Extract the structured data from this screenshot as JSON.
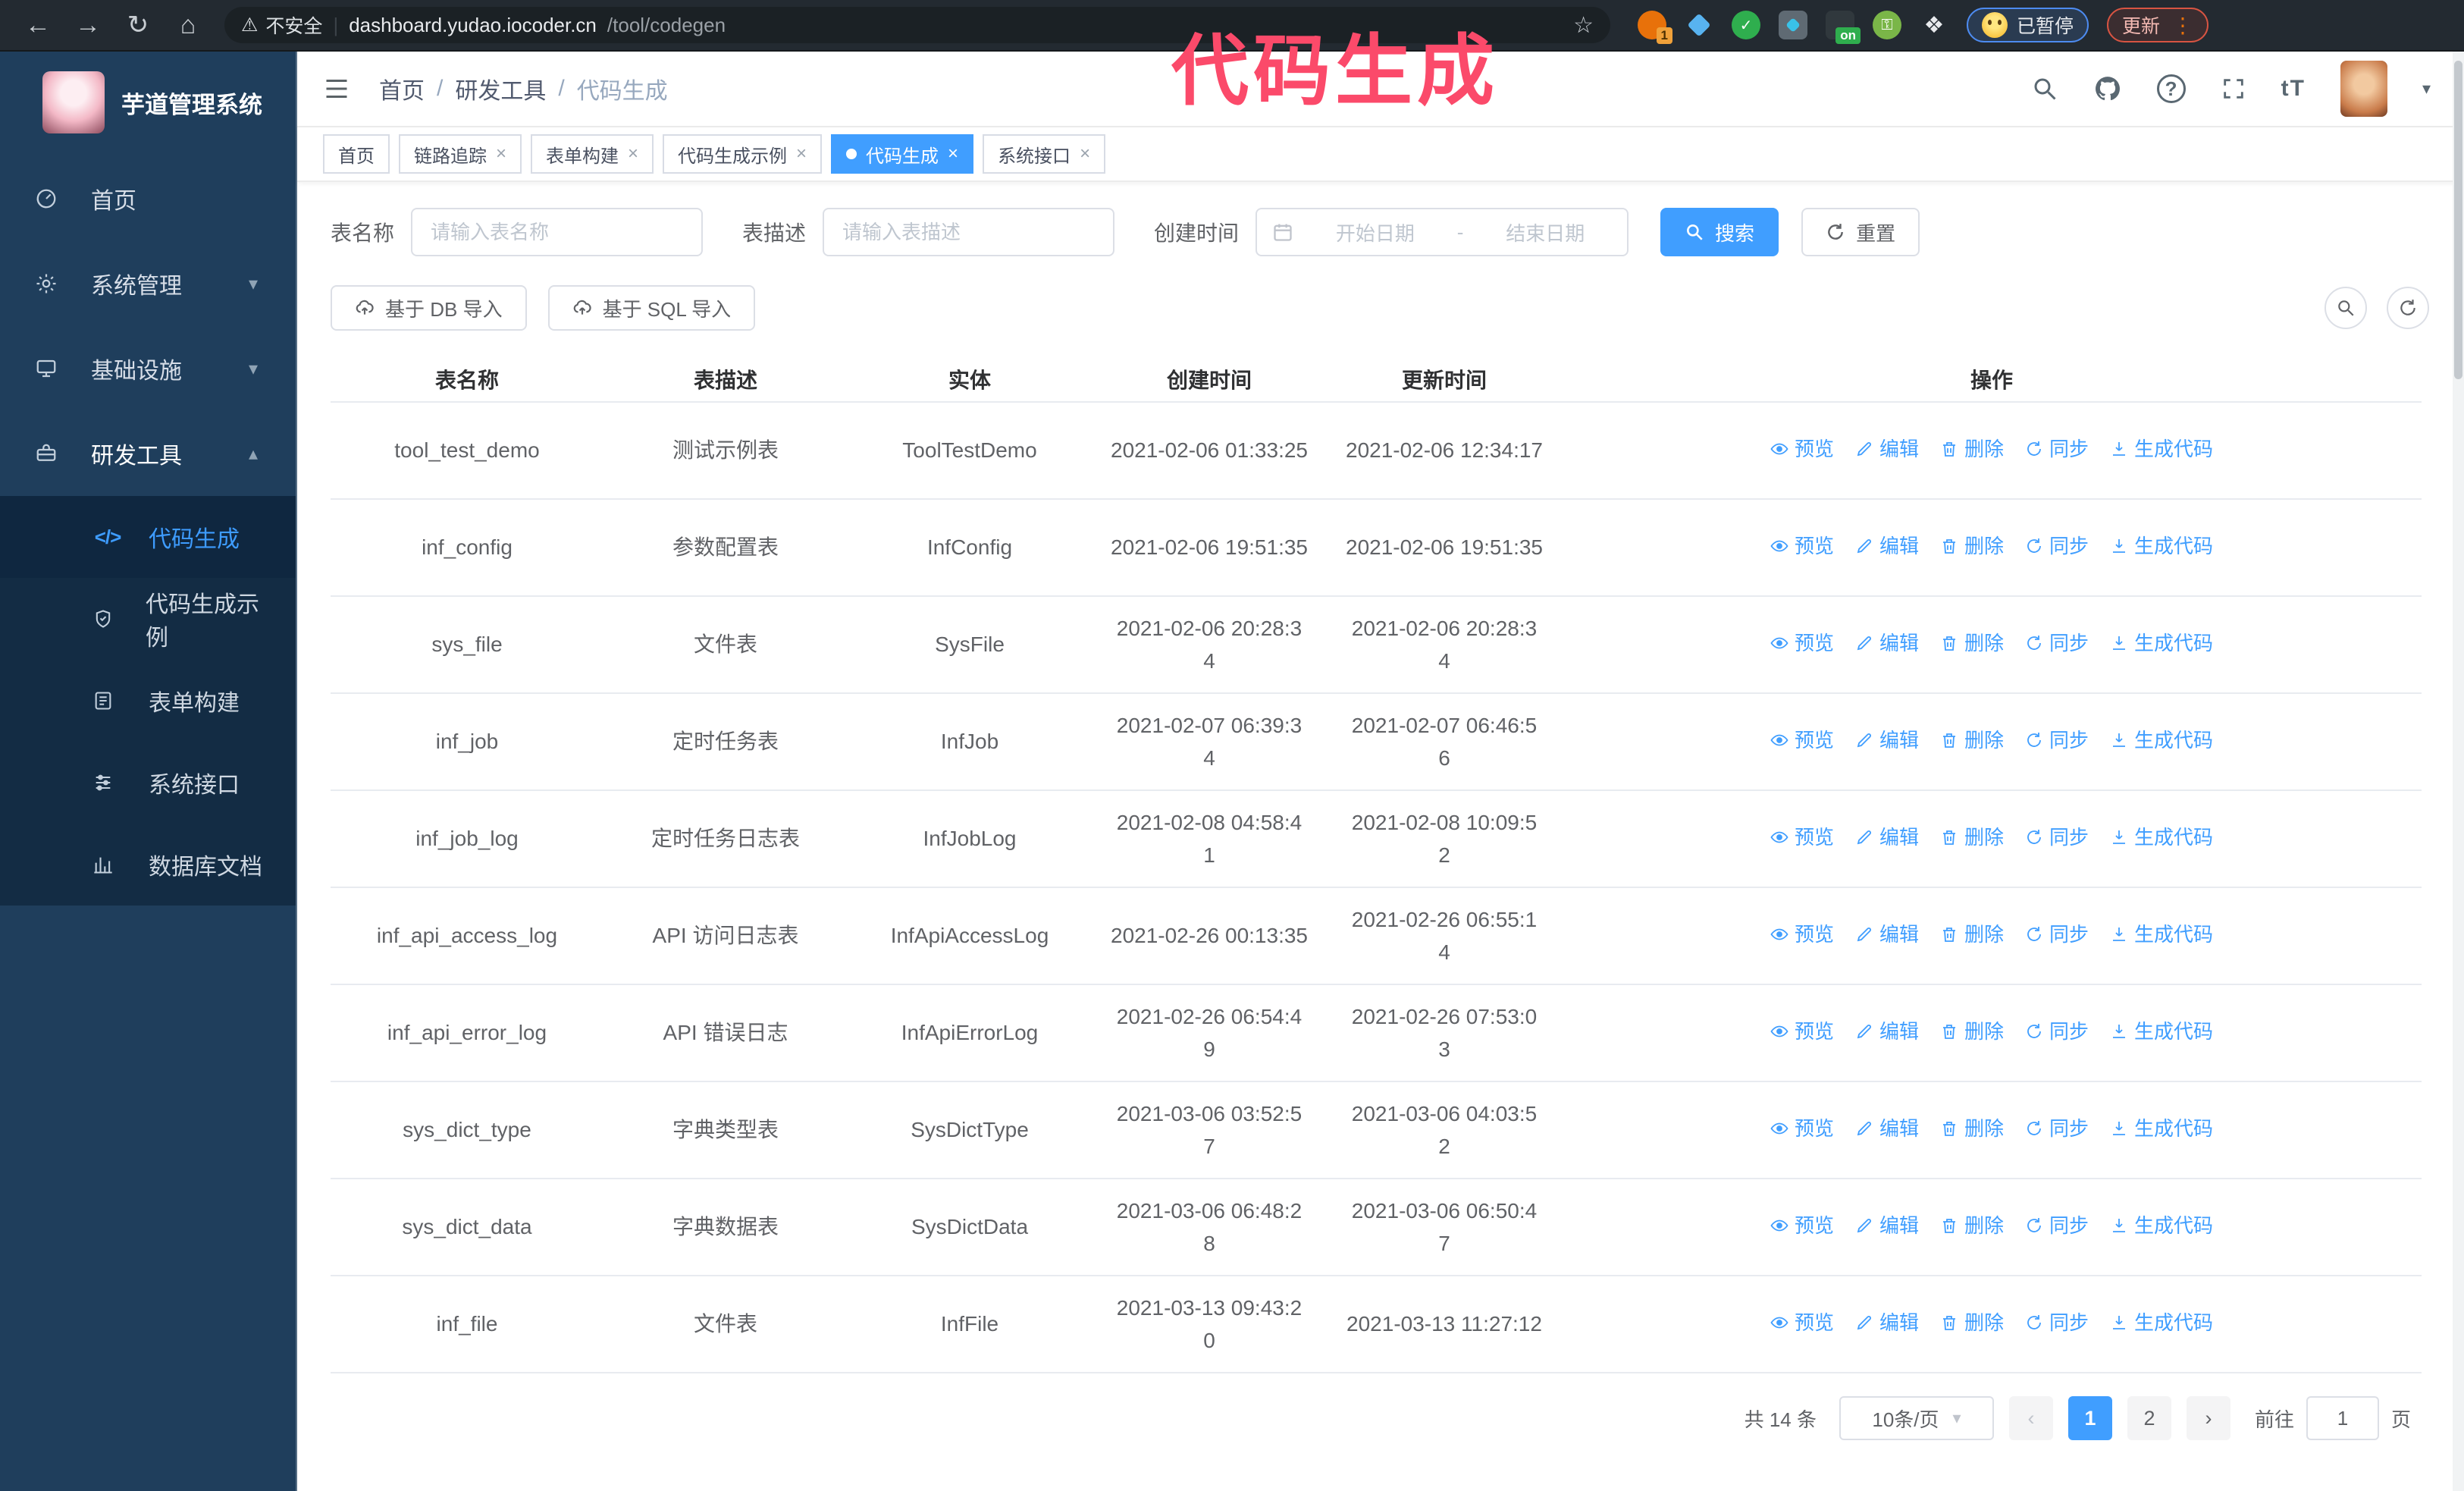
{
  "browser": {
    "security_warning": "不安全",
    "url_host": "dashboard.yudao.iocoder.cn",
    "url_path": "/tool/codegen",
    "ext_badge_count": "1",
    "ext_on_badge": "on",
    "paused_chip": "已暂停",
    "update_button": "更新"
  },
  "watermark": "代码生成",
  "sidebar": {
    "app_title": "芋道管理系统",
    "items": [
      {
        "label": "首页",
        "icon": "dashboard",
        "chevron": "",
        "expanded": false,
        "active": false
      },
      {
        "label": "系统管理",
        "icon": "gear",
        "chevron": "down",
        "expanded": false,
        "active": false
      },
      {
        "label": "基础设施",
        "icon": "monitor",
        "chevron": "down",
        "expanded": false,
        "active": false
      },
      {
        "label": "研发工具",
        "icon": "toolbox",
        "chevron": "up",
        "expanded": true,
        "active": true
      }
    ],
    "submenu": [
      {
        "label": "代码生成",
        "icon": "code",
        "active": true
      },
      {
        "label": "代码生成示例",
        "icon": "shield",
        "active": false
      },
      {
        "label": "表单构建",
        "icon": "form",
        "active": false
      },
      {
        "label": "系统接口",
        "icon": "sliders",
        "active": false
      },
      {
        "label": "数据库文档",
        "icon": "database",
        "active": false
      }
    ]
  },
  "header": {
    "breadcrumb": [
      "首页",
      "研发工具",
      "代码生成"
    ]
  },
  "tabs": [
    {
      "label": "首页",
      "closable": false,
      "active": false
    },
    {
      "label": "链路追踪",
      "closable": true,
      "active": false
    },
    {
      "label": "表单构建",
      "closable": true,
      "active": false
    },
    {
      "label": "代码生成示例",
      "closable": true,
      "active": false
    },
    {
      "label": "代码生成",
      "closable": true,
      "active": true
    },
    {
      "label": "系统接口",
      "closable": true,
      "active": false
    }
  ],
  "filters": {
    "table_name_label": "表名称",
    "table_name_placeholder": "请输入表名称",
    "table_desc_label": "表描述",
    "table_desc_placeholder": "请输入表描述",
    "create_time_label": "创建时间",
    "date_start_placeholder": "开始日期",
    "date_separator": "-",
    "date_end_placeholder": "结束日期",
    "search_button": "搜索",
    "reset_button": "重置"
  },
  "toolbar": {
    "import_db_button": "基于 DB 导入",
    "import_sql_button": "基于 SQL 导入"
  },
  "table": {
    "columns": [
      "表名称",
      "表描述",
      "实体",
      "创建时间",
      "更新时间",
      "操作"
    ],
    "actions": [
      {
        "label": "预览",
        "icon": "eye"
      },
      {
        "label": "编辑",
        "icon": "edit"
      },
      {
        "label": "删除",
        "icon": "trash"
      },
      {
        "label": "同步",
        "icon": "sync"
      },
      {
        "label": "生成代码",
        "icon": "download"
      }
    ],
    "rows": [
      {
        "name": "tool_test_demo",
        "desc": "测试示例表",
        "entity": "ToolTestDemo",
        "created": "2021-02-06 01:33:25",
        "updated": "2021-02-06 12:34:17"
      },
      {
        "name": "inf_config",
        "desc": "参数配置表",
        "entity": "InfConfig",
        "created": "2021-02-06 19:51:35",
        "updated": "2021-02-06 19:51:35"
      },
      {
        "name": "sys_file",
        "desc": "文件表",
        "entity": "SysFile",
        "created": "2021-02-06 20:28:3\n4",
        "updated": "2021-02-06 20:28:3\n4"
      },
      {
        "name": "inf_job",
        "desc": "定时任务表",
        "entity": "InfJob",
        "created": "2021-02-07 06:39:3\n4",
        "updated": "2021-02-07 06:46:5\n6"
      },
      {
        "name": "inf_job_log",
        "desc": "定时任务日志表",
        "entity": "InfJobLog",
        "created": "2021-02-08 04:58:4\n1",
        "updated": "2021-02-08 10:09:5\n2"
      },
      {
        "name": "inf_api_access_log",
        "desc": "API 访问日志表",
        "entity": "InfApiAccessLog",
        "created": "2021-02-26 00:13:35",
        "updated": "2021-02-26 06:55:1\n4"
      },
      {
        "name": "inf_api_error_log",
        "desc": "API 错误日志",
        "entity": "InfApiErrorLog",
        "created": "2021-02-26 06:54:4\n9",
        "updated": "2021-02-26 07:53:0\n3"
      },
      {
        "name": "sys_dict_type",
        "desc": "字典类型表",
        "entity": "SysDictType",
        "created": "2021-03-06 03:52:5\n7",
        "updated": "2021-03-06 04:03:5\n2"
      },
      {
        "name": "sys_dict_data",
        "desc": "字典数据表",
        "entity": "SysDictData",
        "created": "2021-03-06 06:48:2\n8",
        "updated": "2021-03-06 06:50:4\n7"
      },
      {
        "name": "inf_file",
        "desc": "文件表",
        "entity": "InfFile",
        "created": "2021-03-13 09:43:2\n0",
        "updated": "2021-03-13 11:27:12"
      }
    ]
  },
  "pagination": {
    "total": "共 14 条",
    "page_size": "10条/页",
    "pages": [
      "1",
      "2"
    ],
    "active_page": "1",
    "goto_label": "前往",
    "goto_value": "1",
    "goto_suffix": "页"
  },
  "colors": {
    "accent_blue": "#409eff",
    "sidebar_bg": "#1f3e5c",
    "submenu_bg": "#132c44",
    "watermark_pink": "#fb4a6a",
    "chrome_bar": "#232a31",
    "paused_chip_border": "#4d8bf0",
    "update_chip_border": "#d75442"
  }
}
